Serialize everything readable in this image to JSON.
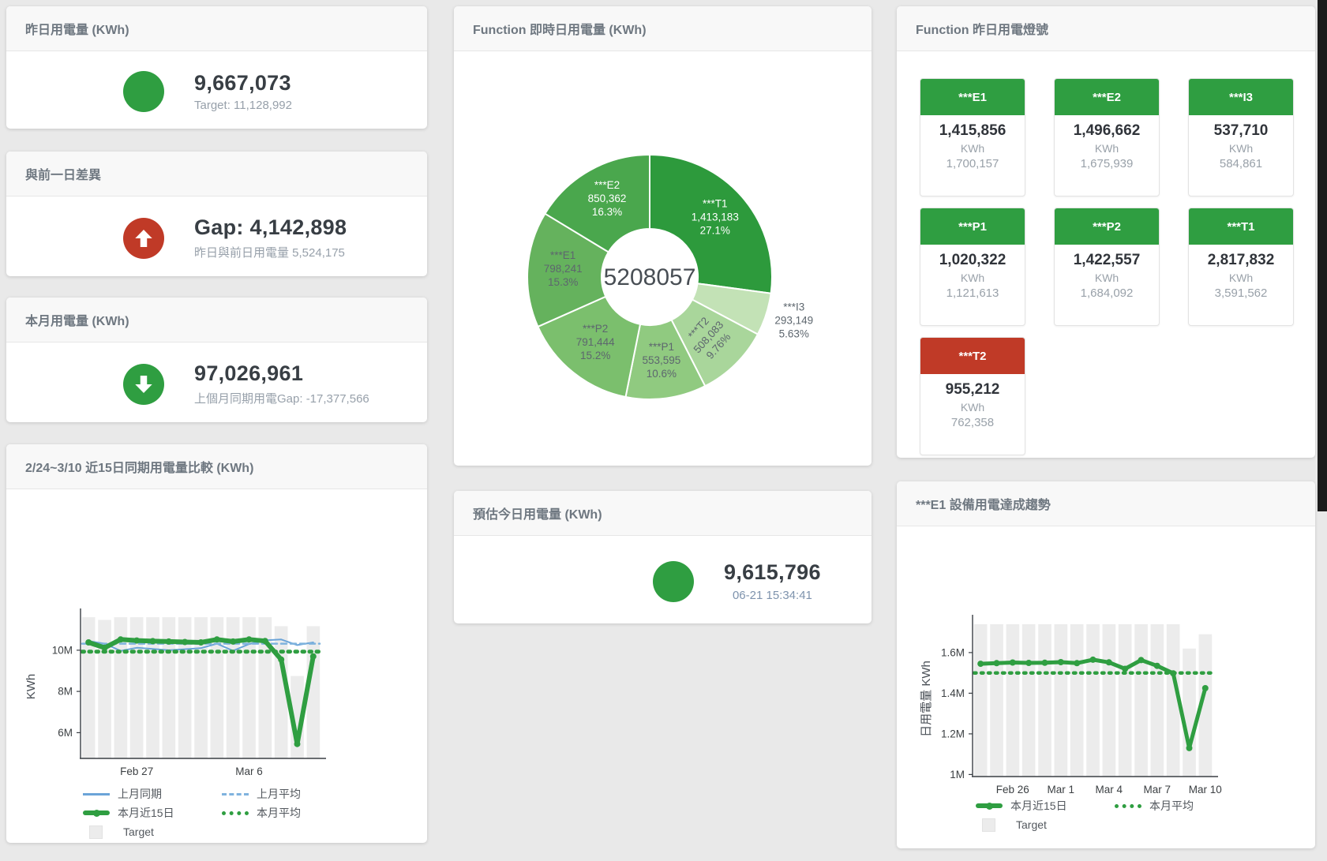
{
  "colors": {
    "green": "#2f9e41",
    "red": "#c03a27",
    "blue_line": "#6ba4d8",
    "bar_gray": "#ececec"
  },
  "cards": {
    "yesterday": {
      "title": "昨日用電量 (KWh)",
      "value": "9,667,073",
      "subtitle": "Target: 11,128,992"
    },
    "day_gap": {
      "title": "與前一日差異",
      "value": "Gap: 4,142,898",
      "subtitle": "昨日與前日用電量 5,524,175"
    },
    "month": {
      "title": "本月用電量 (KWh)",
      "value": "97,026,961",
      "subtitle": "上個月同期用電Gap: -17,377,566"
    },
    "compare": {
      "title": "2/24~3/10 近15日同期用電量比較 (KWh)"
    },
    "realtime": {
      "title": "Function 即時日用電量 (KWh)"
    },
    "estimate": {
      "title": "預估今日用電量 (KWh)",
      "value": "9,615,796",
      "subtitle": "06-21 15:34:41"
    },
    "lights": {
      "title": "Function 昨日用電燈號",
      "tiles": [
        {
          "label": "***E1",
          "value": "1,415,856",
          "unit": "KWh",
          "target": "1,700,157",
          "status_color": "#2f9e41"
        },
        {
          "label": "***E2",
          "value": "1,496,662",
          "unit": "KWh",
          "target": "1,675,939",
          "status_color": "#2f9e41"
        },
        {
          "label": "***I3",
          "value": "537,710",
          "unit": "KWh",
          "target": "584,861",
          "status_color": "#2f9e41"
        },
        {
          "label": "***P1",
          "value": "1,020,322",
          "unit": "KWh",
          "target": "1,121,613",
          "status_color": "#2f9e41"
        },
        {
          "label": "***P2",
          "value": "1,422,557",
          "unit": "KWh",
          "target": "1,684,092",
          "status_color": "#2f9e41"
        },
        {
          "label": "***T1",
          "value": "2,817,832",
          "unit": "KWh",
          "target": "3,591,562",
          "status_color": "#2f9e41"
        },
        {
          "label": "***T2",
          "value": "955,212",
          "unit": "KWh",
          "target": "762,358",
          "status_color": "#c03a27"
        }
      ]
    },
    "trend": {
      "title": "***E1 設備用電達成趨勢"
    }
  },
  "chart_data": [
    {
      "type": "pie",
      "title": "Function 即時日用電量 (KWh)",
      "center_total": "5208057",
      "slices": [
        {
          "name": "***T1",
          "value": 1413183,
          "value_text": "1,413,183",
          "pct": "27.1%",
          "color": "#2d9a3c",
          "label": "inside-white"
        },
        {
          "name": "***I3",
          "value": 293149,
          "value_text": "293,149",
          "pct": "5.63%",
          "color": "#c3e2b6",
          "label": "outside"
        },
        {
          "name": "***T2",
          "value": 508083,
          "value_text": "508,083",
          "pct": "9.76%",
          "color": "#a9d69b",
          "label": "inside-rotated"
        },
        {
          "name": "***P1",
          "value": 553595,
          "value_text": "553,595",
          "pct": "10.6%",
          "color": "#90ca80",
          "label": "inside"
        },
        {
          "name": "***P2",
          "value": 791444,
          "value_text": "791,444",
          "pct": "15.2%",
          "color": "#7bbf6d",
          "label": "inside"
        },
        {
          "name": "***E1",
          "value": 798241,
          "value_text": "798,241",
          "pct": "15.3%",
          "color": "#65b25d",
          "label": "inside"
        },
        {
          "name": "***E2",
          "value": 850362,
          "value_text": "850,362",
          "pct": "16.3%",
          "color": "#4aa74d",
          "label": "inside-white"
        }
      ]
    },
    {
      "type": "line+bar",
      "title": "2/24~3/10 近15日同期用電量比較 (KWh)",
      "ylabel": "KWh",
      "unit": "M KWh",
      "x": [
        "2/24",
        "2/25",
        "2/26",
        "2/27",
        "2/28",
        "3/1",
        "3/2",
        "3/3",
        "3/4",
        "3/5",
        "3/6",
        "3/7",
        "3/8",
        "3/9",
        "3/10"
      ],
      "xticks": [
        {
          "i": 3,
          "label": "Feb 27"
        },
        {
          "i": 10,
          "label": "Mar 6"
        }
      ],
      "yticks": [
        {
          "v": 6,
          "label": "6M"
        },
        {
          "v": 8,
          "label": "8M"
        },
        {
          "v": 10,
          "label": "10M"
        }
      ],
      "ylim": [
        4.75,
        11.72
      ],
      "series": [
        {
          "name": "上月同期",
          "type": "line",
          "style": "solid",
          "width": 2,
          "color": "#6ba4d8",
          "values": [
            10.45,
            10.32,
            9.97,
            10.12,
            10.06,
            10.0,
            10.05,
            10.1,
            10.32,
            9.97,
            10.3,
            10.48,
            10.52,
            10.25,
            10.38
          ]
        },
        {
          "name": "上月平均",
          "type": "line",
          "style": "dashed",
          "width": 2.5,
          "color": "#7fb3de",
          "avg": 10.32
        },
        {
          "name": "本月近15日",
          "type": "line",
          "style": "solid",
          "width": 6,
          "color": "#2f9e41",
          "markers": true,
          "values": [
            10.38,
            10.12,
            10.52,
            10.47,
            10.44,
            10.42,
            10.4,
            10.38,
            10.52,
            10.42,
            10.52,
            10.45,
            9.55,
            5.45,
            9.7
          ]
        },
        {
          "name": "本月平均",
          "type": "line",
          "style": "dotted",
          "width": 5,
          "color": "#2f9e41",
          "avg": 9.93
        },
        {
          "name": "Target",
          "type": "bar",
          "color": "#ececec",
          "values": [
            11.6,
            11.47,
            11.6,
            11.6,
            11.6,
            11.6,
            11.6,
            11.6,
            11.6,
            11.6,
            11.6,
            11.6,
            11.17,
            8.75,
            11.17
          ]
        }
      ]
    },
    {
      "type": "line+bar",
      "title": "***E1 設備用電達成趨勢",
      "ylabel": "日用電量 KWh",
      "unit": "M KWh",
      "x": [
        "2/24",
        "2/25",
        "2/26",
        "2/27",
        "2/28",
        "3/1",
        "3/2",
        "3/3",
        "3/4",
        "3/5",
        "3/6",
        "3/7",
        "3/8",
        "3/9",
        "3/10"
      ],
      "xticks": [
        {
          "i": 2,
          "label": "Feb 26"
        },
        {
          "i": 5,
          "label": "Mar 1"
        },
        {
          "i": 8,
          "label": "Mar 4"
        },
        {
          "i": 11,
          "label": "Mar 7"
        },
        {
          "i": 14,
          "label": "Mar 10"
        }
      ],
      "yticks": [
        {
          "v": 1,
          "label": "1M"
        },
        {
          "v": 1.2,
          "label": "1.2M"
        },
        {
          "v": 1.4,
          "label": "1.4M"
        },
        {
          "v": 1.6,
          "label": "1.6M"
        }
      ],
      "ylim": [
        0.99,
        1.755
      ],
      "series": [
        {
          "name": "本月近15日",
          "type": "line",
          "style": "solid",
          "width": 5,
          "color": "#2f9e41",
          "markers": true,
          "values": [
            1.545,
            1.548,
            1.551,
            1.549,
            1.55,
            1.553,
            1.548,
            1.565,
            1.552,
            1.52,
            1.563,
            1.535,
            1.498,
            1.13,
            1.425
          ]
        },
        {
          "name": "本月平均",
          "type": "line",
          "style": "dotted",
          "width": 4.5,
          "color": "#2f9e41",
          "avg": 1.5
        },
        {
          "name": "Target",
          "type": "bar",
          "color": "#ececec",
          "values": [
            1.74,
            1.74,
            1.74,
            1.74,
            1.74,
            1.74,
            1.74,
            1.74,
            1.74,
            1.74,
            1.74,
            1.74,
            1.74,
            1.62,
            1.69
          ]
        }
      ]
    }
  ]
}
